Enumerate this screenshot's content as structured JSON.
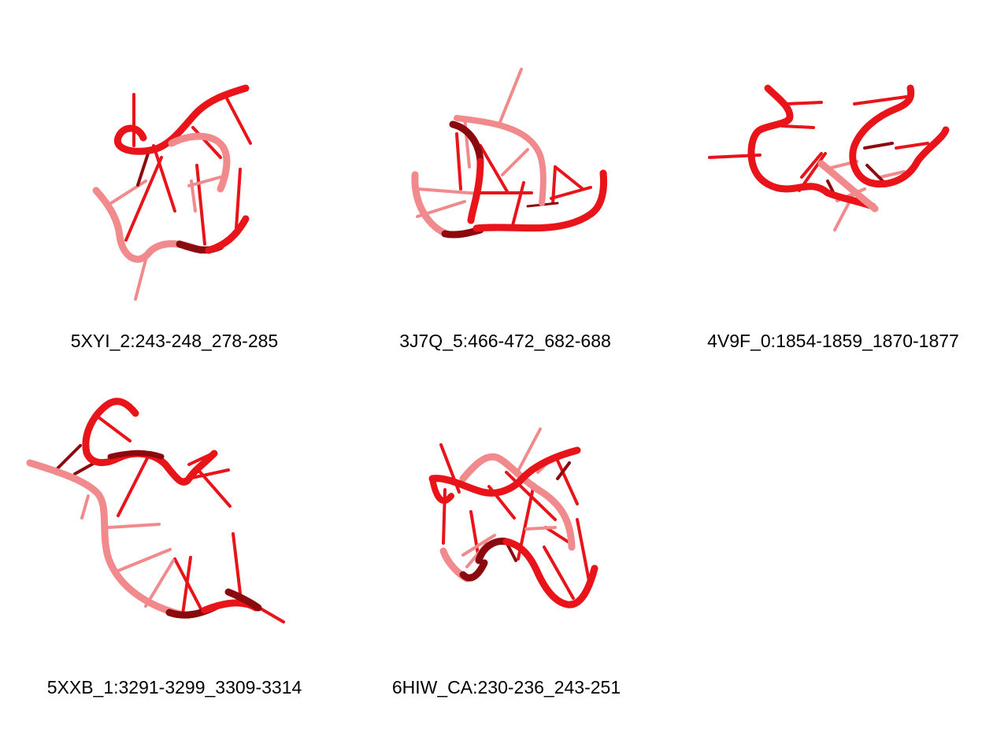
{
  "structures": [
    {
      "caption": "5XYI_2:243-248_278-285",
      "render": "rna-cartoon",
      "color": "#e8141a"
    },
    {
      "caption": "3J7Q_5:466-472_682-688",
      "render": "rna-cartoon",
      "color": "#e8141a"
    },
    {
      "caption": "4V9F_0:1854-1859_1870-1877",
      "render": "rna-cartoon",
      "color": "#e8141a"
    },
    {
      "caption": "5XXB_1:3291-3299_3309-3314",
      "render": "rna-cartoon",
      "color": "#e8141a"
    },
    {
      "caption": "6HIW_CA:230-236_243-251",
      "render": "rna-cartoon",
      "color": "#e8141a"
    }
  ],
  "colors": {
    "strand": "#e8141a",
    "strand_dark": "#8b0a0e",
    "strand_light": "#f08a8c",
    "background": "#ffffff"
  }
}
